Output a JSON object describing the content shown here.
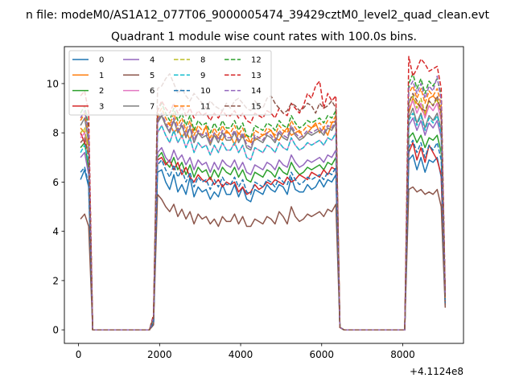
{
  "chart_data": {
    "type": "line",
    "suptitle": "n file: modeM0/AS1A12_077T06_9000005474_39429cztM0_level2_quad_clean.evt",
    "title": "Quadrant 1 module wise count rates with 100.0s bins.",
    "xlabel": "",
    "ylabel": "",
    "x_offset_label": "+4.1124e8",
    "xlim": [
      -350,
      9500
    ],
    "ylim": [
      -0.55,
      11.5
    ],
    "x_ticks": [
      0,
      2000,
      4000,
      6000,
      8000
    ],
    "x_tick_labels": [
      "0",
      "2000",
      "4000",
      "6000",
      "8000"
    ],
    "y_ticks": [
      0,
      2,
      4,
      6,
      8,
      10
    ],
    "y_tick_labels": [
      "0",
      "2",
      "4",
      "6",
      "8",
      "10"
    ],
    "grid": false,
    "legend_position": "top-left",
    "legend_columns": 4,
    "x": [
      50,
      150,
      250,
      350,
      1750,
      1850,
      1950,
      2050,
      2150,
      2250,
      2350,
      2450,
      2550,
      2650,
      2750,
      2850,
      2950,
      3050,
      3150,
      3250,
      3350,
      3450,
      3550,
      3650,
      3750,
      3850,
      3950,
      4050,
      4150,
      4250,
      4350,
      4450,
      4550,
      4650,
      4750,
      4850,
      4950,
      5050,
      5150,
      5250,
      5350,
      5450,
      5550,
      5650,
      5750,
      5850,
      5950,
      6050,
      6150,
      6250,
      6350,
      6450,
      6550,
      8050,
      8150,
      8250,
      8350,
      8450,
      8550,
      8650,
      8750,
      8850,
      8950,
      9050
    ],
    "series": [
      {
        "name": "0",
        "color": "#1f77b4",
        "style": "solid",
        "values": [
          6.1,
          6.5,
          5.8,
          0,
          0,
          0.3,
          6.4,
          6.5,
          6.0,
          5.7,
          6.3,
          5.6,
          5.9,
          5.5,
          6.2,
          5.4,
          5.8,
          5.6,
          5.7,
          5.3,
          5.6,
          5.4,
          5.9,
          5.5,
          5.5,
          5.9,
          5.4,
          5.8,
          5.3,
          5.2,
          5.7,
          5.6,
          5.5,
          5.9,
          5.7,
          5.6,
          5.9,
          5.8,
          5.5,
          6.2,
          5.7,
          5.6,
          5.6,
          5.9,
          5.7,
          5.8,
          6.1,
          5.8,
          6.1,
          6.0,
          6.3,
          0.1,
          0,
          0,
          6.9,
          7.1,
          6.5,
          7.0,
          6.4,
          6.9,
          6.8,
          7.0,
          6.2,
          1.0
        ]
      },
      {
        "name": "1",
        "color": "#ff7f0e",
        "style": "solid",
        "values": [
          8.2,
          8.0,
          7.5,
          0,
          0,
          0.5,
          8.5,
          8.7,
          8.3,
          8.4,
          8.0,
          8.2,
          7.8,
          8.1,
          7.7,
          8.2,
          8.0,
          7.9,
          8.3,
          7.6,
          8.0,
          7.8,
          7.7,
          8.1,
          7.9,
          7.5,
          8.0,
          7.8,
          7.9,
          7.6,
          7.7,
          7.8,
          7.9,
          8.0,
          8.1,
          7.8,
          7.7,
          8.0,
          8.2,
          7.9,
          8.0,
          8.1,
          7.8,
          8.0,
          8.2,
          8.4,
          8.0,
          8.2,
          7.9,
          8.4,
          8.5,
          0.1,
          0,
          0,
          8.8,
          9.4,
          9.2,
          9.0,
          8.7,
          9.4,
          9.5,
          9.3,
          9.0,
          1.2
        ]
      },
      {
        "name": "2",
        "color": "#2ca02c",
        "style": "solid",
        "values": [
          7.4,
          7.6,
          6.5,
          0,
          0,
          0.4,
          7.0,
          7.2,
          6.8,
          6.6,
          7.0,
          6.5,
          6.8,
          6.3,
          6.7,
          6.2,
          6.6,
          6.4,
          6.5,
          6.1,
          6.5,
          6.2,
          6.6,
          6.4,
          6.3,
          6.6,
          6.2,
          6.5,
          6.1,
          6.0,
          6.4,
          6.3,
          6.2,
          6.5,
          6.4,
          6.2,
          6.6,
          6.4,
          6.3,
          6.8,
          6.5,
          6.3,
          6.4,
          6.6,
          6.5,
          6.6,
          6.7,
          6.5,
          6.8,
          6.7,
          7.0,
          0.1,
          0,
          0,
          7.8,
          8.0,
          7.6,
          7.9,
          7.4,
          7.8,
          7.7,
          7.9,
          7.2,
          1.1
        ]
      },
      {
        "name": "3",
        "color": "#d62728",
        "style": "solid",
        "values": [
          8.0,
          7.6,
          7.2,
          0,
          0,
          0.3,
          6.9,
          7.0,
          6.7,
          6.9,
          6.5,
          6.8,
          6.3,
          6.6,
          6.2,
          6.0,
          6.3,
          6.1,
          6.0,
          6.2,
          5.9,
          6.1,
          5.8,
          6.0,
          5.9,
          6.0,
          5.6,
          5.8,
          5.5,
          5.6,
          5.9,
          5.7,
          5.8,
          6.0,
          5.9,
          6.1,
          6.0,
          5.9,
          6.2,
          6.0,
          6.1,
          6.3,
          6.2,
          6.1,
          6.4,
          6.3,
          6.2,
          6.5,
          6.3,
          6.6,
          6.5,
          0.1,
          0,
          0,
          7.2,
          7.6,
          6.9,
          7.4,
          6.8,
          7.5,
          7.2,
          6.9,
          6.3,
          1.1
        ]
      },
      {
        "name": "4",
        "color": "#9467bd",
        "style": "solid",
        "values": [
          7.0,
          7.2,
          6.3,
          0,
          0,
          0.4,
          7.2,
          7.4,
          7.0,
          6.8,
          7.3,
          6.9,
          7.1,
          6.7,
          7.0,
          6.5,
          6.9,
          6.7,
          6.8,
          6.4,
          6.8,
          6.5,
          6.9,
          6.7,
          6.6,
          6.9,
          6.5,
          6.8,
          6.4,
          6.3,
          6.7,
          6.6,
          6.5,
          6.8,
          6.7,
          6.5,
          6.9,
          6.7,
          6.6,
          7.1,
          6.8,
          6.6,
          6.7,
          6.9,
          6.8,
          6.9,
          7.0,
          6.8,
          7.1,
          7.0,
          7.3,
          0.1,
          0,
          0,
          8.3,
          8.6,
          8.1,
          8.5,
          7.9,
          8.4,
          8.2,
          8.5,
          7.8,
          1.2
        ]
      },
      {
        "name": "5",
        "color": "#8c564b",
        "style": "solid",
        "values": [
          4.5,
          4.7,
          4.2,
          0,
          0,
          0.2,
          5.5,
          5.3,
          5.0,
          4.8,
          5.1,
          4.6,
          4.9,
          4.5,
          4.8,
          4.3,
          4.7,
          4.5,
          4.6,
          4.3,
          4.5,
          4.2,
          4.6,
          4.4,
          4.4,
          4.7,
          4.3,
          4.6,
          4.2,
          4.2,
          4.5,
          4.4,
          4.3,
          4.6,
          4.5,
          4.3,
          4.8,
          4.6,
          4.3,
          5.0,
          4.6,
          4.4,
          4.5,
          4.7,
          4.6,
          4.7,
          4.8,
          4.6,
          4.9,
          4.8,
          5.1,
          0.1,
          0,
          0,
          5.7,
          5.8,
          5.6,
          5.7,
          5.5,
          5.6,
          5.5,
          5.7,
          5.0,
          0.9
        ]
      },
      {
        "name": "6",
        "color": "#e377c2",
        "style": "solid",
        "values": [
          7.8,
          8.0,
          7.1,
          0,
          0,
          0.4,
          8.0,
          8.3,
          7.9,
          7.6,
          8.1,
          7.6,
          7.9,
          7.4,
          7.8,
          7.2,
          7.6,
          7.4,
          7.5,
          7.1,
          7.5,
          7.2,
          7.6,
          7.3,
          7.3,
          7.6,
          7.2,
          7.5,
          7.0,
          6.9,
          7.4,
          7.3,
          7.2,
          7.5,
          7.4,
          7.2,
          7.6,
          7.4,
          7.3,
          7.8,
          7.5,
          7.3,
          7.4,
          7.6,
          7.5,
          7.6,
          7.7,
          7.5,
          7.8,
          7.7,
          8.0,
          0.1,
          0,
          0,
          9.0,
          9.3,
          8.8,
          9.2,
          8.6,
          9.1,
          8.9,
          9.2,
          8.5,
          1.3
        ]
      },
      {
        "name": "7",
        "color": "#7f7f7f",
        "style": "solid",
        "values": [
          8.3,
          8.6,
          7.6,
          0,
          0,
          0.5,
          8.4,
          8.7,
          8.3,
          8.0,
          8.5,
          8.0,
          8.3,
          7.8,
          8.2,
          7.6,
          8.0,
          7.8,
          7.9,
          7.5,
          7.9,
          7.6,
          8.0,
          7.7,
          7.7,
          8.0,
          7.6,
          7.9,
          7.4,
          7.3,
          7.8,
          7.7,
          7.6,
          7.9,
          7.8,
          7.6,
          8.0,
          7.8,
          7.7,
          8.2,
          7.9,
          7.7,
          7.8,
          8.0,
          7.9,
          8.0,
          8.1,
          7.9,
          8.2,
          8.1,
          8.4,
          0.1,
          0,
          0,
          8.6,
          9.0,
          8.4,
          8.8,
          8.2,
          8.7,
          8.5,
          8.8,
          8.1,
          1.2
        ]
      },
      {
        "name": "8",
        "color": "#bcbd22",
        "style": "dashed",
        "values": [
          8.0,
          8.2,
          7.2,
          0,
          0,
          0.5,
          8.6,
          8.8,
          8.4,
          8.1,
          8.6,
          8.1,
          8.4,
          7.9,
          8.3,
          7.7,
          8.1,
          7.9,
          8.0,
          7.6,
          8.0,
          7.7,
          8.1,
          7.8,
          7.8,
          8.1,
          7.7,
          8.0,
          7.5,
          7.4,
          7.9,
          7.8,
          7.7,
          8.0,
          7.9,
          7.7,
          8.1,
          7.9,
          7.8,
          8.3,
          8.0,
          7.8,
          7.9,
          8.1,
          8.0,
          8.1,
          8.2,
          8.0,
          8.3,
          8.2,
          8.5,
          0.1,
          0,
          0,
          9.2,
          9.5,
          9.0,
          9.4,
          8.8,
          9.3,
          9.1,
          9.4,
          8.7,
          1.3
        ]
      },
      {
        "name": "9",
        "color": "#17becf",
        "style": "dashed",
        "values": [
          7.2,
          7.5,
          6.8,
          0,
          0,
          0.4,
          8.0,
          8.3,
          7.9,
          7.6,
          8.1,
          7.6,
          7.9,
          7.4,
          7.8,
          7.2,
          7.6,
          7.4,
          7.5,
          7.1,
          7.5,
          7.2,
          7.6,
          7.3,
          7.3,
          7.6,
          7.2,
          7.5,
          7.0,
          6.9,
          7.4,
          7.3,
          7.2,
          7.5,
          7.4,
          7.2,
          7.6,
          7.4,
          7.3,
          7.8,
          7.5,
          7.3,
          7.4,
          7.6,
          7.5,
          7.6,
          7.7,
          7.5,
          7.8,
          7.7,
          8.0,
          0.1,
          0,
          0,
          8.5,
          8.8,
          8.3,
          8.7,
          8.1,
          8.6,
          8.4,
          8.7,
          8.0,
          1.2
        ]
      },
      {
        "name": "10",
        "color": "#1f77b4",
        "style": "dashed",
        "values": [
          6.4,
          6.6,
          5.9,
          0,
          0,
          0.3,
          6.7,
          6.9,
          6.5,
          6.2,
          6.7,
          6.2,
          6.5,
          6.0,
          6.4,
          5.8,
          6.2,
          6.0,
          6.1,
          5.7,
          6.1,
          5.8,
          6.2,
          5.9,
          5.9,
          6.2,
          5.8,
          6.1,
          5.6,
          5.5,
          6.0,
          5.9,
          5.8,
          6.1,
          6.0,
          5.8,
          6.2,
          6.0,
          5.9,
          6.4,
          6.1,
          5.9,
          6.0,
          6.2,
          6.1,
          6.2,
          6.3,
          6.1,
          6.4,
          6.3,
          6.6,
          0.1,
          0,
          0,
          7.4,
          7.7,
          7.2,
          7.6,
          7.0,
          7.5,
          7.3,
          7.6,
          6.9,
          1.1
        ]
      },
      {
        "name": "11",
        "color": "#ff7f0e",
        "style": "dashed",
        "values": [
          8.5,
          8.8,
          7.9,
          0,
          0,
          0.5,
          8.7,
          9.0,
          8.6,
          8.3,
          8.8,
          8.3,
          8.6,
          8.1,
          8.5,
          7.9,
          8.3,
          8.1,
          8.2,
          7.8,
          8.2,
          7.9,
          8.3,
          8.0,
          8.0,
          8.3,
          7.9,
          8.2,
          7.7,
          7.6,
          8.1,
          8.0,
          7.9,
          8.2,
          8.1,
          7.9,
          8.3,
          8.1,
          8.0,
          8.5,
          8.2,
          8.0,
          8.1,
          8.3,
          8.2,
          8.3,
          8.4,
          8.2,
          8.5,
          8.4,
          8.7,
          0.1,
          0,
          0,
          9.6,
          9.9,
          9.4,
          9.8,
          9.2,
          9.7,
          9.5,
          9.8,
          9.1,
          1.3
        ]
      },
      {
        "name": "12",
        "color": "#2ca02c",
        "style": "dashed",
        "values": [
          8.8,
          9.1,
          8.2,
          0,
          0,
          0.6,
          8.9,
          9.2,
          8.8,
          8.5,
          9.0,
          8.5,
          8.8,
          8.3,
          8.7,
          8.1,
          8.5,
          8.3,
          8.4,
          8.0,
          8.4,
          8.1,
          8.5,
          8.2,
          8.2,
          8.5,
          8.1,
          8.4,
          7.9,
          7.8,
          8.3,
          8.2,
          8.1,
          8.4,
          8.3,
          8.1,
          8.5,
          8.3,
          8.2,
          8.7,
          8.4,
          8.2,
          8.3,
          8.5,
          8.4,
          8.5,
          8.6,
          8.4,
          8.7,
          8.6,
          8.9,
          0.1,
          0,
          0,
          10.0,
          10.4,
          9.8,
          10.2,
          9.6,
          10.1,
          9.9,
          10.2,
          9.5,
          1.4
        ]
      },
      {
        "name": "13",
        "color": "#d62728",
        "style": "dashed",
        "values": [
          9.5,
          9.7,
          8.8,
          0,
          0,
          0.6,
          8.9,
          9.3,
          9.0,
          8.8,
          9.2,
          8.8,
          9.1,
          8.7,
          9.0,
          8.6,
          8.9,
          8.7,
          8.8,
          8.5,
          8.8,
          8.6,
          8.9,
          8.7,
          8.7,
          8.9,
          8.6,
          8.8,
          8.5,
          8.4,
          8.8,
          8.7,
          8.6,
          8.9,
          8.8,
          8.6,
          9.0,
          8.8,
          8.7,
          9.2,
          9.0,
          8.8,
          9.1,
          9.6,
          9.4,
          9.9,
          10.1,
          9.0,
          9.6,
          9.3,
          9.5,
          0.1,
          0,
          0,
          11.1,
          10.3,
          10.6,
          11.0,
          10.8,
          10.5,
          10.6,
          10.7,
          9.8,
          1.5
        ]
      },
      {
        "name": "14",
        "color": "#9467bd",
        "style": "dashed",
        "values": [
          8.6,
          8.9,
          8.0,
          0,
          0,
          0.5,
          8.5,
          8.8,
          8.4,
          8.1,
          8.6,
          8.1,
          8.4,
          7.9,
          8.3,
          7.7,
          8.1,
          7.9,
          8.0,
          7.6,
          8.0,
          7.7,
          8.1,
          7.8,
          7.8,
          8.1,
          7.7,
          8.0,
          7.5,
          7.4,
          7.9,
          7.8,
          7.7,
          8.0,
          7.9,
          7.7,
          8.1,
          7.9,
          7.8,
          8.3,
          8.0,
          7.8,
          7.9,
          8.1,
          8.0,
          8.1,
          8.2,
          8.0,
          8.3,
          8.2,
          8.5,
          0.1,
          0,
          0,
          9.8,
          10.1,
          9.6,
          10.0,
          9.4,
          9.9,
          9.7,
          10.3,
          9.3,
          1.4
        ]
      },
      {
        "name": "15",
        "color": "#8c564b",
        "style": "dashed",
        "values": [
          7.6,
          7.8,
          7.0,
          0,
          0,
          0.5,
          9.8,
          9.9,
          10.2,
          10.4,
          10.0,
          9.6,
          9.8,
          9.5,
          9.3,
          9.6,
          9.4,
          9.2,
          9.0,
          9.3,
          9.1,
          9.0,
          8.9,
          9.2,
          9.0,
          9.3,
          9.4,
          9.2,
          9.0,
          8.9,
          9.3,
          9.1,
          9.0,
          9.4,
          9.5,
          9.2,
          9.0,
          8.8,
          8.9,
          9.2,
          9.1,
          8.9,
          9.0,
          9.2,
          9.1,
          8.8,
          9.2,
          9.0,
          9.1,
          9.3,
          9.0,
          0.1,
          0,
          0,
          9.2,
          9.6,
          9.3,
          9.0,
          8.9,
          9.3,
          9.1,
          9.5,
          8.8,
          1.3
        ]
      }
    ]
  }
}
